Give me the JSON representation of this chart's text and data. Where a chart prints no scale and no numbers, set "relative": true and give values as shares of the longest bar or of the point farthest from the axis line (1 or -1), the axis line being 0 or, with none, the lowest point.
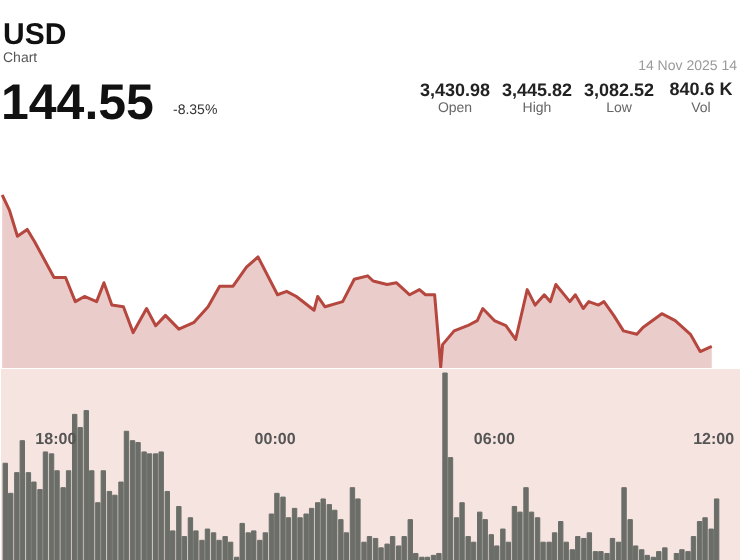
{
  "chart_data": [
    {
      "type": "area",
      "title": "USD",
      "subtitle": "Chart",
      "annotations": [
        "144.55",
        "-8.35%",
        "3,430.98",
        "Open",
        "3,445.82",
        "High",
        "3,082.52",
        "Low",
        "840.6 K",
        "Vol",
        "14 Nov 2025 14"
      ],
      "relative": true,
      "xlim": [
        "2025-11-13T16:30",
        "2025-11-14T12:45"
      ],
      "series": [
        {
          "type": "area",
          "color": "#b5473f",
          "x": [
            "2025-11-13T16:32",
            "2025-11-13T16:44",
            "2025-11-13T16:57",
            "2025-11-13T17:13",
            "2025-11-13T17:25",
            "2025-11-13T17:57",
            "2025-11-13T18:16",
            "2025-11-13T18:32",
            "2025-11-13T18:47",
            "2025-11-13T19:07",
            "2025-11-13T19:19",
            "2025-11-13T19:32",
            "2025-11-13T19:51",
            "2025-11-13T20:07",
            "2025-11-13T20:29",
            "2025-11-13T20:44",
            "2025-11-13T21:00",
            "2025-11-13T21:22",
            "2025-11-13T21:47",
            "2025-11-13T22:10",
            "2025-11-13T22:29",
            "2025-11-13T22:51",
            "2025-11-13T23:13",
            "2025-11-13T23:32",
            "2025-11-14T00:04",
            "2025-11-14T00:19",
            "2025-11-14T00:35",
            "2025-11-14T01:04",
            "2025-11-14T01:10",
            "2025-11-14T01:22",
            "2025-11-14T01:51",
            "2025-11-14T02:10",
            "2025-11-14T02:32",
            "2025-11-14T02:41",
            "2025-11-14T03:04",
            "2025-11-14T03:19",
            "2025-11-14T03:41",
            "2025-11-14T03:57",
            "2025-11-14T04:07",
            "2025-11-14T04:22",
            "2025-11-14T04:32",
            "2025-11-14T04:35",
            "2025-11-14T04:54",
            "2025-11-14T05:16",
            "2025-11-14T05:32",
            "2025-11-14T05:41",
            "2025-11-14T06:00",
            "2025-11-14T06:19",
            "2025-11-14T06:35",
            "2025-11-14T06:54",
            "2025-11-14T07:07",
            "2025-11-14T07:22",
            "2025-11-14T07:32",
            "2025-11-14T07:41",
            "2025-11-14T08:04",
            "2025-11-14T08:13",
            "2025-11-14T08:26",
            "2025-11-14T08:35",
            "2025-11-14T08:51",
            "2025-11-14T09:00",
            "2025-11-14T09:16",
            "2025-11-14T09:32",
            "2025-11-14T09:54",
            "2025-11-14T10:04",
            "2025-11-14T10:35",
            "2025-11-14T10:57",
            "2025-11-14T11:22",
            "2025-11-14T11:38",
            "2025-11-14T11:57"
          ],
          "values": [
            1,
            0.91,
            0.76,
            0.8,
            0.73,
            0.52,
            0.52,
            0.38,
            0.41,
            0.38,
            0.49,
            0.36,
            0.35,
            0.2,
            0.34,
            0.24,
            0.3,
            0.22,
            0.26,
            0.35,
            0.47,
            0.47,
            0.58,
            0.64,
            0.42,
            0.44,
            0.41,
            0.33,
            0.41,
            0.35,
            0.38,
            0.51,
            0.53,
            0.5,
            0.48,
            0.49,
            0.42,
            0.45,
            0.42,
            0.42,
            0,
            0.13,
            0.21,
            0.24,
            0.27,
            0.34,
            0.27,
            0.24,
            0.16,
            0.45,
            0.36,
            0.42,
            0.38,
            0.48,
            0.38,
            0.42,
            0.34,
            0.38,
            0.36,
            0.38,
            0.3,
            0.21,
            0.19,
            0.23,
            0.31,
            0.27,
            0.19,
            0.09,
            0.12
          ]
        }
      ]
    },
    {
      "type": "bar",
      "relative": true,
      "xlim": [
        "2025-11-13T16:30",
        "2025-11-14T12:45"
      ],
      "xticks": [
        {
          "value": "2025-11-13T18:00",
          "label": "18:00"
        },
        {
          "value": "2025-11-14T00:00",
          "label": "00:00"
        },
        {
          "value": "2025-11-14T06:00",
          "label": "06:00"
        },
        {
          "value": "2025-11-14T12:00",
          "label": "12:00"
        }
      ],
      "color": "#6b6e68",
      "x": [
        "2025-11-13T16:37",
        "2025-11-13T16:46",
        "2025-11-13T16:56",
        "2025-11-13T17:05",
        "2025-11-13T17:15",
        "2025-11-13T17:24",
        "2025-11-13T17:34",
        "2025-11-13T17:43",
        "2025-11-13T17:53",
        "2025-11-13T18:02",
        "2025-11-13T18:12",
        "2025-11-13T18:21",
        "2025-11-13T18:31",
        "2025-11-13T18:40",
        "2025-11-13T18:50",
        "2025-11-13T18:59",
        "2025-11-13T19:09",
        "2025-11-13T19:18",
        "2025-11-13T19:28",
        "2025-11-13T19:37",
        "2025-11-13T19:47",
        "2025-11-13T19:56",
        "2025-11-13T20:06",
        "2025-11-13T20:15",
        "2025-11-13T20:25",
        "2025-11-13T20:34",
        "2025-11-13T20:44",
        "2025-11-13T20:53",
        "2025-11-13T21:03",
        "2025-11-13T21:12",
        "2025-11-13T21:22",
        "2025-11-13T21:31",
        "2025-11-13T21:41",
        "2025-11-13T21:50",
        "2025-11-13T22:00",
        "2025-11-13T22:09",
        "2025-11-13T22:19",
        "2025-11-13T22:28",
        "2025-11-13T22:38",
        "2025-11-13T22:47",
        "2025-11-13T22:57",
        "2025-11-13T23:06",
        "2025-11-13T23:16",
        "2025-11-13T23:25",
        "2025-11-13T23:35",
        "2025-11-13T23:44",
        "2025-11-13T23:54",
        "2025-11-14T00:03",
        "2025-11-14T00:13",
        "2025-11-14T00:22",
        "2025-11-14T00:32",
        "2025-11-14T00:41",
        "2025-11-14T00:51",
        "2025-11-14T01:00",
        "2025-11-14T01:10",
        "2025-11-14T01:19",
        "2025-11-14T01:29",
        "2025-11-14T01:38",
        "2025-11-14T01:48",
        "2025-11-14T01:57",
        "2025-11-14T02:07",
        "2025-11-14T02:16",
        "2025-11-14T02:26",
        "2025-11-14T02:35",
        "2025-11-14T02:45",
        "2025-11-14T02:54",
        "2025-11-14T03:04",
        "2025-11-14T03:13",
        "2025-11-14T03:23",
        "2025-11-14T03:32",
        "2025-11-14T03:42",
        "2025-11-14T03:51",
        "2025-11-14T04:01",
        "2025-11-14T04:10",
        "2025-11-14T04:20",
        "2025-11-14T04:29",
        "2025-11-14T04:39",
        "2025-11-14T04:48",
        "2025-11-14T04:58",
        "2025-11-14T05:07",
        "2025-11-14T05:17",
        "2025-11-14T05:26",
        "2025-11-14T05:36",
        "2025-11-14T05:45",
        "2025-11-14T05:55",
        "2025-11-14T06:04",
        "2025-11-14T06:14",
        "2025-11-14T06:23",
        "2025-11-14T06:33",
        "2025-11-14T06:42",
        "2025-11-14T06:52",
        "2025-11-14T07:01",
        "2025-11-14T07:11",
        "2025-11-14T07:20",
        "2025-11-14T07:30",
        "2025-11-14T07:39",
        "2025-11-14T07:49",
        "2025-11-14T07:58",
        "2025-11-14T08:08",
        "2025-11-14T08:17",
        "2025-11-14T08:27",
        "2025-11-14T08:36",
        "2025-11-14T08:46",
        "2025-11-14T08:55",
        "2025-11-14T09:05",
        "2025-11-14T09:14",
        "2025-11-14T09:24",
        "2025-11-14T09:33",
        "2025-11-14T09:43",
        "2025-11-14T09:52",
        "2025-11-14T10:02",
        "2025-11-14T10:11",
        "2025-11-14T10:21",
        "2025-11-14T10:30",
        "2025-11-14T10:40",
        "2025-11-14T10:49",
        "2025-11-14T10:59",
        "2025-11-14T11:08",
        "2025-11-14T11:18",
        "2025-11-14T11:27",
        "2025-11-14T11:37",
        "2025-11-14T11:46",
        "2025-11-14T11:56",
        "2025-11-14T12:05"
      ],
      "values": [
        0.52,
        0.36,
        0.47,
        0.64,
        0.47,
        0.42,
        0.38,
        0.58,
        0.57,
        0.48,
        0.39,
        0.48,
        0.78,
        0.71,
        0.8,
        0.48,
        0.31,
        0.48,
        0.37,
        0.35,
        0.42,
        0.69,
        0.64,
        0.63,
        0.58,
        0.57,
        0.57,
        0.58,
        0.37,
        0.16,
        0.29,
        0.13,
        0.23,
        0.16,
        0.11,
        0.17,
        0.15,
        0.11,
        0.13,
        0.1,
        0.02,
        0.2,
        0.15,
        0.16,
        0.11,
        0.15,
        0.25,
        0.36,
        0.34,
        0.23,
        0.28,
        0.23,
        0.25,
        0.28,
        0.31,
        0.33,
        0.3,
        0.27,
        0.22,
        0.15,
        0.39,
        0.33,
        0.1,
        0.13,
        0.12,
        0.07,
        0.09,
        0.13,
        0.08,
        0.13,
        0.22,
        0.04,
        0.02,
        0.02,
        0.03,
        0.04,
        1,
        0.55,
        0.23,
        0.31,
        0.13,
        0.1,
        0.26,
        0.22,
        0.14,
        0.08,
        0.17,
        0.1,
        0.29,
        0.26,
        0.39,
        0.26,
        0.23,
        0.1,
        0.1,
        0.15,
        0.21,
        0.1,
        0.06,
        0.13,
        0.12,
        0.15,
        0.05,
        0.05,
        0.04,
        0.12,
        0.1,
        0.39,
        0.22,
        0.08,
        0.06,
        0.03,
        0.02,
        0.05,
        0.07,
        0,
        0.04,
        0.06,
        0.05,
        0.13,
        0.21,
        0.23,
        0.17,
        0.33
      ]
    }
  ]
}
